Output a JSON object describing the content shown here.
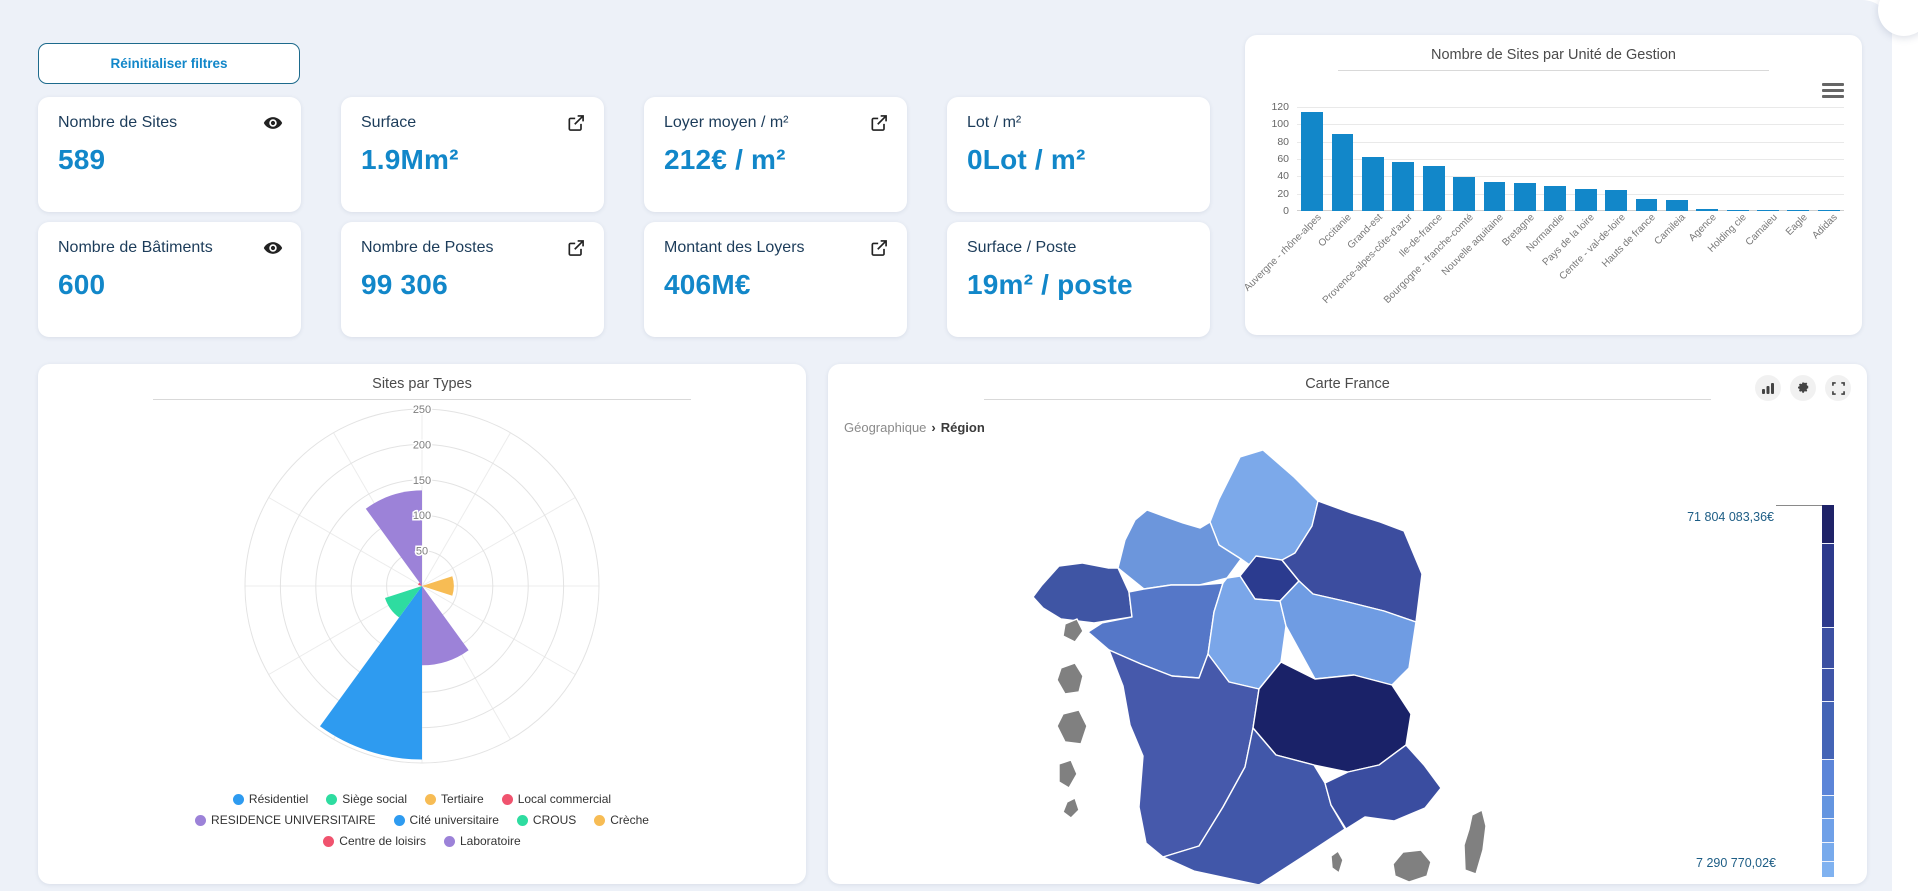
{
  "filters": {
    "reset_label": "Réinitialiser filtres"
  },
  "kpis": [
    {
      "title": "Nombre de Sites",
      "value": "589",
      "icon": "eye-icon"
    },
    {
      "title": "Surface",
      "value": "1.9Mm²",
      "icon": "external-link-icon"
    },
    {
      "title": "Loyer moyen / m²",
      "value": "212€ / m²",
      "icon": "external-link-icon"
    },
    {
      "title": "Lot / m²",
      "value": "0Lot / m²",
      "icon": "none"
    },
    {
      "title": "Nombre de Bâtiments",
      "value": "600",
      "icon": "eye-icon"
    },
    {
      "title": "Nombre de Postes",
      "value": "99 306",
      "icon": "external-link-icon"
    },
    {
      "title": "Montant des Loyers",
      "value": "406M€",
      "icon": "external-link-icon"
    },
    {
      "title": "Surface / Poste",
      "value": "19m² / poste",
      "icon": "none"
    }
  ],
  "chart_data": [
    {
      "type": "bar",
      "title": "Nombre de Sites par Unité de Gestion",
      "categories": [
        "Auvergne - rhône-alpes",
        "Occitanie",
        "Grand-est",
        "Provence-alpes-côte-d'azur",
        "Ile-de-france",
        "Bourgogne - franche-comté",
        "Nouvelle aquitaine",
        "Bretagne",
        "Normandie",
        "Pays de la loire",
        "Centre - val-de-loire",
        "Hauts de france",
        "Camileia",
        "Agence",
        "Holding cie",
        "Camaieu",
        "Eagle",
        "Adidas"
      ],
      "values": [
        114,
        89,
        62,
        57,
        52,
        39,
        33,
        32,
        29,
        25,
        24,
        14,
        13,
        2,
        1,
        1,
        1,
        1
      ],
      "ylim": [
        0,
        120
      ],
      "yticks": [
        0,
        20,
        40,
        60,
        80,
        100,
        120
      ],
      "bar_color": "#1287c9",
      "grid": true,
      "legend_position": "none"
    },
    {
      "type": "rose",
      "title": "Sites par Types",
      "categories": [
        "Résidentiel",
        "Siège social",
        "Tertiaire",
        "Local commercial",
        "RESIDENCE UNIVERSITAIRE",
        "Cité universitaire",
        "CROUS",
        "Crèche",
        "Centre de loisirs",
        "Laboratoire"
      ],
      "values": [
        0,
        0,
        45,
        0,
        112,
        245,
        55,
        0,
        6,
        135
      ],
      "rlim": [
        0,
        250
      ],
      "rticks": [
        50,
        100,
        150,
        200,
        250
      ],
      "palette": [
        "#2e9bf0",
        "#2edca0",
        "#f7bc54",
        "#f0536e",
        "#9c82d8"
      ],
      "legend_rows": [
        [
          0,
          1,
          2,
          3
        ],
        [
          4,
          5,
          6,
          7
        ],
        [
          8,
          9
        ]
      ],
      "legend_position": "bottom"
    },
    {
      "type": "choropleth-map",
      "title": "Carte France",
      "breadcrumb": {
        "level1": "Géographique",
        "level2": "Région"
      },
      "scale_max_label": "71 804 083,36€",
      "scale_min_label": "7 290 770,02€",
      "region_colors": [
        "#7ca9ea",
        "#6c96dc",
        "#2b3b8f",
        "#3c4d9f",
        "#3f55a4",
        "#5577c8",
        "#7aa6e9",
        "#6f9ce3",
        "#4659ab",
        "#1a2268",
        "#4157a9",
        "#3a4da0",
        "#808080",
        "#808080",
        "#808080",
        "#808080",
        "#808080",
        "#808080",
        "#808080",
        "#808080"
      ],
      "scale_segments": [
        {
          "color": "#1f2368",
          "h": 10.3
        },
        {
          "color": "#2d3a8c",
          "h": 22.6
        },
        {
          "color": "#3c50a2",
          "h": 11.0
        },
        {
          "color": "#3f55a8",
          "h": 8.8
        },
        {
          "color": "#4464b6",
          "h": 15.5
        },
        {
          "color": "#5c85d8",
          "h": 9.7
        },
        {
          "color": "#6495e0",
          "h": 6.3
        },
        {
          "color": "#6fa0e8",
          "h": 6.5
        },
        {
          "color": "#78aaec",
          "h": 4.9
        },
        {
          "color": "#80b2f0",
          "h": 4.4
        }
      ]
    }
  ]
}
